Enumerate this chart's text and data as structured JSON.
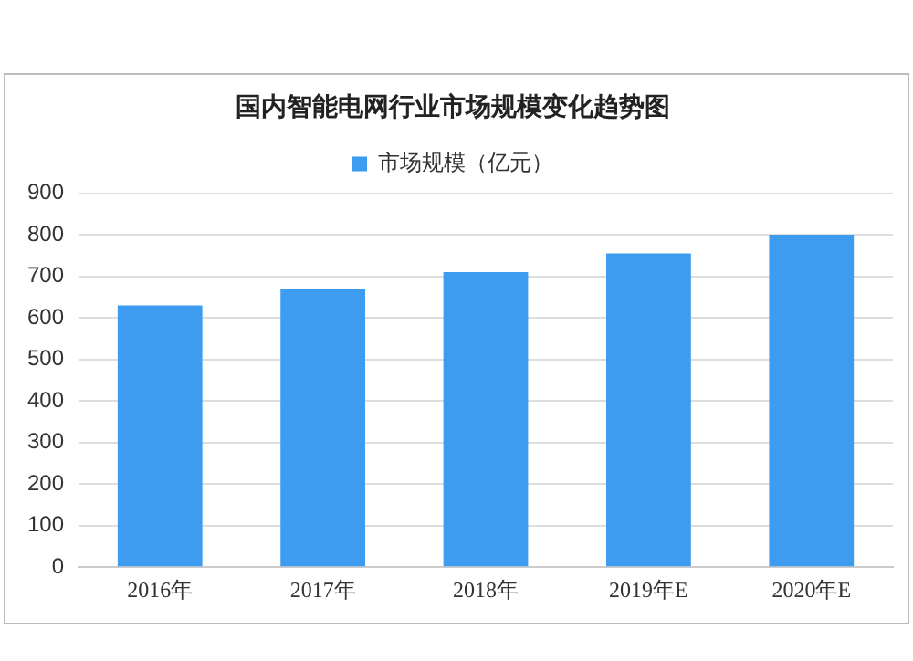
{
  "chart_data": {
    "type": "bar",
    "title": "国内智能电网行业市场规模变化趋势图",
    "categories": [
      "2016年",
      "2017年",
      "2018年",
      "2019年E",
      "2020年E"
    ],
    "series": [
      {
        "name": "市场规模（亿元）",
        "color": "#3e9cf0",
        "values": [
          630,
          670,
          710,
          755,
          800
        ]
      }
    ],
    "ylim": [
      0,
      900
    ],
    "yticks": [
      0,
      100,
      200,
      300,
      400,
      500,
      600,
      700,
      800,
      900
    ],
    "grid": "y",
    "legend": "top"
  }
}
